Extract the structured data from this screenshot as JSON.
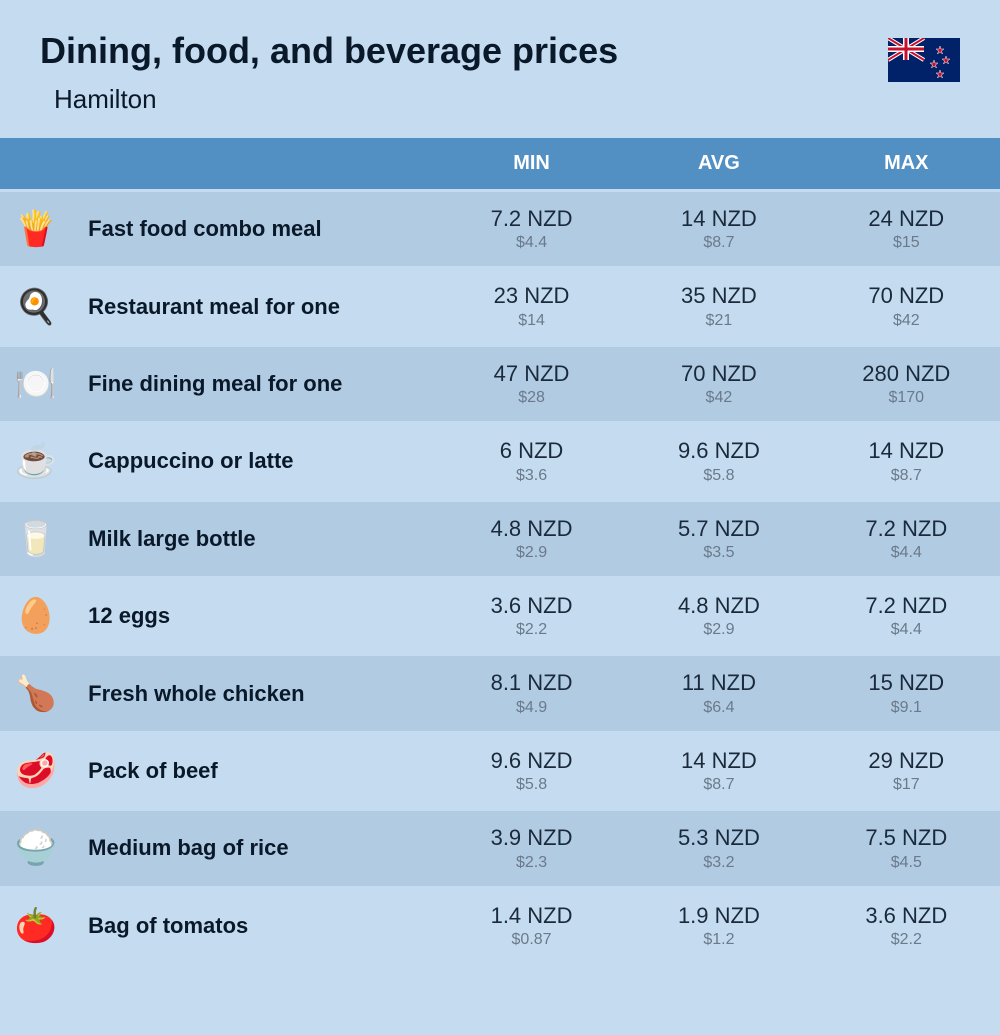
{
  "header": {
    "title": "Dining, food, and beverage prices",
    "location": "Hamilton",
    "flag": "new-zealand"
  },
  "columns": [
    "MIN",
    "AVG",
    "MAX"
  ],
  "colors": {
    "page_bg": "#c5dcf0",
    "header_bg": "#5290c4",
    "header_text": "#ffffff",
    "row_dark": "#b1cbe3",
    "row_light": "#c5dcf0",
    "text_primary": "#0a1929",
    "text_value": "#1a2a3a",
    "text_secondary": "#6b7a8a"
  },
  "typography": {
    "title_size": 36,
    "subtitle_size": 26,
    "header_size": 20,
    "name_size": 22,
    "primary_size": 22,
    "secondary_size": 16
  },
  "currency": {
    "primary": "NZD",
    "secondary_prefix": "$"
  },
  "rows": [
    {
      "icon": "fast-food-icon",
      "emoji": "🍟",
      "name": "Fast food combo meal",
      "min": {
        "primary": "7.2 NZD",
        "secondary": "$4.4"
      },
      "avg": {
        "primary": "14 NZD",
        "secondary": "$8.7"
      },
      "max": {
        "primary": "24 NZD",
        "secondary": "$15"
      }
    },
    {
      "icon": "restaurant-icon",
      "emoji": "🍳",
      "name": "Restaurant meal for one",
      "min": {
        "primary": "23 NZD",
        "secondary": "$14"
      },
      "avg": {
        "primary": "35 NZD",
        "secondary": "$21"
      },
      "max": {
        "primary": "70 NZD",
        "secondary": "$42"
      }
    },
    {
      "icon": "fine-dining-icon",
      "emoji": "🍽️",
      "name": "Fine dining meal for one",
      "min": {
        "primary": "47 NZD",
        "secondary": "$28"
      },
      "avg": {
        "primary": "70 NZD",
        "secondary": "$42"
      },
      "max": {
        "primary": "280 NZD",
        "secondary": "$170"
      }
    },
    {
      "icon": "coffee-icon",
      "emoji": "☕",
      "name": "Cappuccino or latte",
      "min": {
        "primary": "6 NZD",
        "secondary": "$3.6"
      },
      "avg": {
        "primary": "9.6 NZD",
        "secondary": "$5.8"
      },
      "max": {
        "primary": "14 NZD",
        "secondary": "$8.7"
      }
    },
    {
      "icon": "milk-icon",
      "emoji": "🥛",
      "name": "Milk large bottle",
      "min": {
        "primary": "4.8 NZD",
        "secondary": "$2.9"
      },
      "avg": {
        "primary": "5.7 NZD",
        "secondary": "$3.5"
      },
      "max": {
        "primary": "7.2 NZD",
        "secondary": "$4.4"
      }
    },
    {
      "icon": "eggs-icon",
      "emoji": "🥚",
      "name": "12 eggs",
      "min": {
        "primary": "3.6 NZD",
        "secondary": "$2.2"
      },
      "avg": {
        "primary": "4.8 NZD",
        "secondary": "$2.9"
      },
      "max": {
        "primary": "7.2 NZD",
        "secondary": "$4.4"
      }
    },
    {
      "icon": "chicken-icon",
      "emoji": "🍗",
      "name": "Fresh whole chicken",
      "min": {
        "primary": "8.1 NZD",
        "secondary": "$4.9"
      },
      "avg": {
        "primary": "11 NZD",
        "secondary": "$6.4"
      },
      "max": {
        "primary": "15 NZD",
        "secondary": "$9.1"
      }
    },
    {
      "icon": "beef-icon",
      "emoji": "🥩",
      "name": "Pack of beef",
      "min": {
        "primary": "9.6 NZD",
        "secondary": "$5.8"
      },
      "avg": {
        "primary": "14 NZD",
        "secondary": "$8.7"
      },
      "max": {
        "primary": "29 NZD",
        "secondary": "$17"
      }
    },
    {
      "icon": "rice-icon",
      "emoji": "🍚",
      "name": "Medium bag of rice",
      "min": {
        "primary": "3.9 NZD",
        "secondary": "$2.3"
      },
      "avg": {
        "primary": "5.3 NZD",
        "secondary": "$3.2"
      },
      "max": {
        "primary": "7.5 NZD",
        "secondary": "$4.5"
      }
    },
    {
      "icon": "tomato-icon",
      "emoji": "🍅",
      "name": "Bag of tomatos",
      "min": {
        "primary": "1.4 NZD",
        "secondary": "$0.87"
      },
      "avg": {
        "primary": "1.9 NZD",
        "secondary": "$1.2"
      },
      "max": {
        "primary": "3.6 NZD",
        "secondary": "$2.2"
      }
    }
  ]
}
